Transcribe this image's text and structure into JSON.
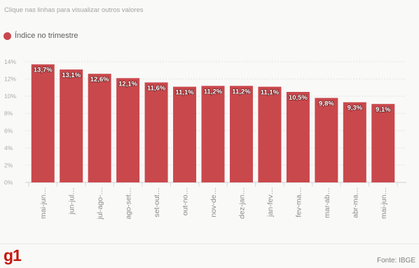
{
  "instruction": "Clique nas linhas para visualizar outros valores",
  "logo": "g1",
  "source": "Fonte: IBGE",
  "colors": {
    "bar": "#c9484c",
    "logo": "#c4170c"
  },
  "chart_data": {
    "type": "bar",
    "categories": [
      "mai-jun…",
      "jun-jul…",
      "jul-ago-…",
      "ago-set…",
      "set-out…",
      "out-no…",
      "nov-de…",
      "dez-jan…",
      "jan-fev…",
      "fev-ma…",
      "mar-ab…",
      "abr-ma…",
      "mai-jun…"
    ],
    "series": [
      {
        "name": "Índice no trimestre",
        "values": [
          13.7,
          13.1,
          12.6,
          12.1,
          11.6,
          11.1,
          11.2,
          11.2,
          11.1,
          10.5,
          9.8,
          9.3,
          9.1
        ]
      }
    ],
    "data_labels": [
      "13,7%",
      "13,1%",
      "12,6%",
      "12,1%",
      "11,6%",
      "11,1%",
      "11,2%",
      "11,2%",
      "11,1%",
      "10,5%",
      "9,8%",
      "9,3%",
      "9,1%"
    ],
    "y_ticks": [
      0,
      2,
      4,
      6,
      8,
      10,
      12,
      14
    ],
    "y_tick_labels": [
      "0%",
      "2%",
      "4%",
      "6%",
      "8%",
      "10%",
      "12%",
      "14%"
    ],
    "ylim": [
      0,
      14
    ],
    "grid": true,
    "legend_position": "top-left"
  }
}
